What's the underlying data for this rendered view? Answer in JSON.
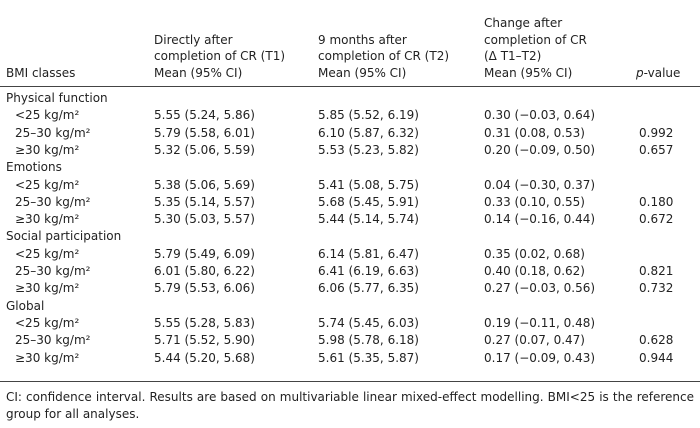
{
  "header": {
    "columns": [
      [
        "BMI classes"
      ],
      [
        "Directly after",
        "completion of CR (T1)",
        "Mean (95% CI)"
      ],
      [
        "9 months after",
        "completion of CR (T2)",
        "Mean (95% CI)"
      ],
      [
        "Change after",
        "completion of CR",
        "(Δ T1–T2)",
        "Mean (95% CI)"
      ]
    ],
    "p_value": {
      "italic": "p",
      "rest": "-value"
    }
  },
  "groups": [
    {
      "name": "Physical function",
      "rows": [
        {
          "bmi": "<25 kg/m²",
          "t1": "5.55 (5.24, 5.86)",
          "t2": "5.85 (5.52, 6.19)",
          "change": "0.30 (−0.03, 0.64)"
        },
        {
          "bmi": "25–30 kg/m²",
          "t1": "5.79 (5.58, 6.01)",
          "t2": "6.10 (5.87, 6.32)",
          "change": "0.31 (0.08, 0.53)",
          "p": "0.992"
        },
        {
          "bmi": "≥30 kg/m²",
          "t1": "5.32 (5.06, 5.59)",
          "t2": "5.53 (5.23, 5.82)",
          "change": "0.20 (−0.09, 0.50)",
          "p": "0.657"
        }
      ]
    },
    {
      "name": "Emotions",
      "rows": [
        {
          "bmi": "<25 kg/m²",
          "t1": "5.38 (5.06, 5.69)",
          "t2": "5.41 (5.08, 5.75)",
          "change": "0.04 (−0.30, 0.37)"
        },
        {
          "bmi": "25–30 kg/m²",
          "t1": "5.35 (5.14, 5.57)",
          "t2": "5.68 (5.45, 5.91)",
          "change": "0.33 (0.10, 0.55)",
          "p": "0.180"
        },
        {
          "bmi": "≥30 kg/m²",
          "t1": "5.30 (5.03, 5.57)",
          "t2": "5.44 (5.14, 5.74)",
          "change": "0.14 (−0.16, 0.44)",
          "p": "0.672"
        }
      ]
    },
    {
      "name": "Social participation",
      "rows": [
        {
          "bmi": "<25 kg/m²",
          "t1": "5.79 (5.49, 6.09)",
          "t2": "6.14 (5.81, 6.47)",
          "change": "0.35 (0.02, 0.68)"
        },
        {
          "bmi": "25–30 kg/m²",
          "t1": "6.01 (5.80, 6.22)",
          "t2": "6.41 (6.19, 6.63)",
          "change": "0.40 (0.18, 0.62)",
          "p": "0.821"
        },
        {
          "bmi": "≥30 kg/m²",
          "t1": "5.79 (5.53, 6.06)",
          "t2": "6.06 (5.77, 6.35)",
          "change": "0.27 (−0.03, 0.56)",
          "p": "0.732"
        }
      ]
    },
    {
      "name": "Global",
      "rows": [
        {
          "bmi": "<25 kg/m²",
          "t1": "5.55 (5.28, 5.83)",
          "t2": "5.74 (5.45, 6.03)",
          "change": "0.19 (−0.11, 0.48)"
        },
        {
          "bmi": "25–30 kg/m²",
          "t1": "5.71 (5.52, 5.90)",
          "t2": "5.98 (5.78, 6.18)",
          "change": "0.27 (0.07, 0.47)",
          "p": "0.628"
        },
        {
          "bmi": "≥30 kg/m²",
          "t1": "5.44 (5.20, 5.68)",
          "t2": "5.61 (5.35, 5.87)",
          "change": "0.17 (−0.09, 0.43)",
          "p": "0.944"
        }
      ]
    }
  ],
  "footnote": "CI: confidence interval. Results are based on multivariable linear mixed-effect modelling. BMI<25 is the reference group for all analyses."
}
